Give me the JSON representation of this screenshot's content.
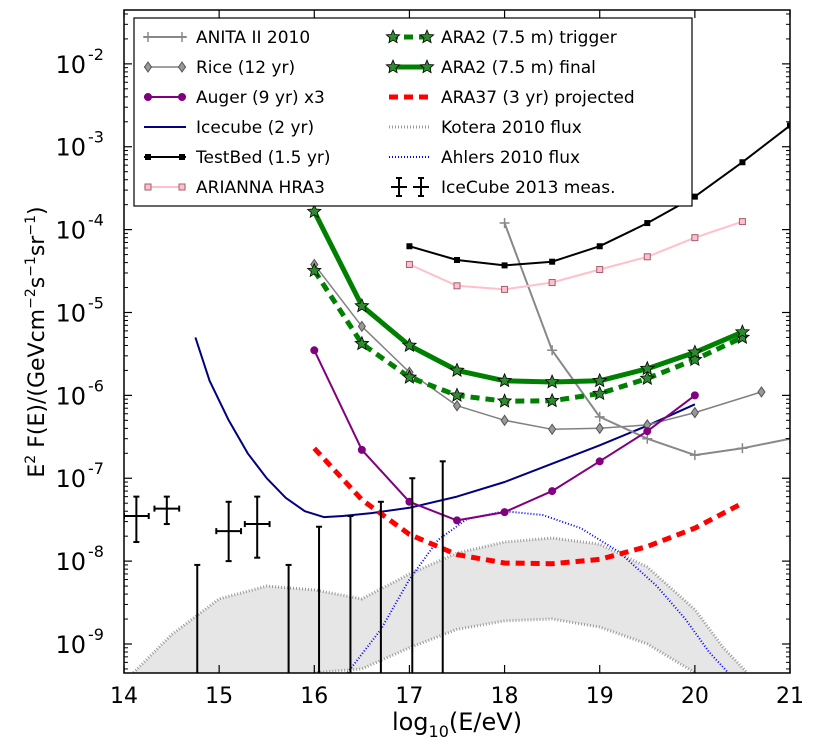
{
  "chart_data": {
    "type": "line",
    "title": "",
    "xlabel": "log10(E/eV)",
    "ylabel": "E² F(E)/(GeV cm⁻² s⁻¹ sr⁻¹)",
    "xlim": [
      14,
      21
    ],
    "ylim_log10": [
      -9.35,
      -1.35
    ],
    "x_ticks": [
      {
        "value": 14,
        "label": "14"
      },
      {
        "value": 15,
        "label": "15"
      },
      {
        "value": 16,
        "label": "16"
      },
      {
        "value": 17,
        "label": "17"
      },
      {
        "value": 18,
        "label": "18"
      },
      {
        "value": 19,
        "label": "19"
      },
      {
        "value": 20,
        "label": "20"
      },
      {
        "value": 21,
        "label": "21"
      }
    ],
    "y_ticks": [
      {
        "exp": -9,
        "label": "10",
        "sup": "-9"
      },
      {
        "exp": -8,
        "label": "10",
        "sup": "-8"
      },
      {
        "exp": -7,
        "label": "10",
        "sup": "-7"
      },
      {
        "exp": -6,
        "label": "10",
        "sup": "-6"
      },
      {
        "exp": -5,
        "label": "10",
        "sup": "-5"
      },
      {
        "exp": -4,
        "label": "10",
        "sup": "-4"
      },
      {
        "exp": -3,
        "label": "10",
        "sup": "-3"
      },
      {
        "exp": -2,
        "label": "10",
        "sup": "-2"
      }
    ],
    "grid": false,
    "legend_position": "top",
    "series": [
      {
        "name": "ANITA II 2010",
        "color": "#888888",
        "width": 2,
        "dash": "",
        "marker": "plus",
        "x": [
          18.0,
          18.5,
          19.0,
          19.5,
          20.0,
          20.5,
          21.0
        ],
        "y": [
          0.00012,
          3.5e-06,
          5.5e-07,
          3e-07,
          1.9e-07,
          2.3e-07,
          3e-07
        ]
      },
      {
        "name": "Rice (12 yr)",
        "color": "#808080",
        "width": 1.5,
        "dash": "",
        "marker": "diamond",
        "x": [
          16.0,
          16.5,
          17.0,
          17.5,
          18.0,
          18.5,
          19.0,
          19.5,
          20.0,
          20.7
        ],
        "y": [
          3.8e-05,
          6.8e-06,
          1.9e-06,
          7.5e-07,
          5e-07,
          3.9e-07,
          4e-07,
          4.4e-07,
          6.2e-07,
          1.1e-06
        ]
      },
      {
        "name": "Auger (9 yr) x3",
        "color": "#800080",
        "width": 2,
        "dash": "",
        "marker": "circle",
        "x": [
          16.0,
          16.5,
          17.0,
          17.5,
          18.0,
          18.5,
          19.0,
          19.5,
          20.0
        ],
        "y": [
          3.5e-06,
          2.2e-07,
          5.2e-08,
          3.1e-08,
          3.9e-08,
          7e-08,
          1.6e-07,
          3.7e-07,
          1e-06
        ]
      },
      {
        "name": "Icecube (2 yr)",
        "color": "#000080",
        "width": 2,
        "dash": "",
        "marker": "none",
        "x": [
          14.75,
          14.9,
          15.1,
          15.3,
          15.5,
          15.7,
          15.9,
          16.1,
          16.3,
          16.6,
          17.0,
          17.5,
          18.0,
          18.5,
          19.0,
          19.5,
          20.0
        ],
        "y": [
          5e-06,
          1.5e-06,
          5e-07,
          2e-07,
          1e-07,
          5.8e-08,
          4e-08,
          3.4e-08,
          3.5e-08,
          3.8e-08,
          4.4e-08,
          6e-08,
          9e-08,
          1.5e-07,
          2.5e-07,
          4.3e-07,
          7.8e-07
        ]
      },
      {
        "name": "TestBed (1.5 yr)",
        "color": "#000000",
        "width": 2,
        "dash": "",
        "marker": "square",
        "x": [
          17.0,
          17.5,
          18.0,
          18.5,
          19.0,
          19.5,
          20.0,
          20.5,
          21.0
        ],
        "y": [
          6.3e-05,
          4.3e-05,
          3.7e-05,
          4.1e-05,
          6.3e-05,
          0.00012,
          0.00025,
          0.00065,
          0.0018
        ]
      },
      {
        "name": "ARIANNA HRA3",
        "color": "#ffc0cb",
        "width": 2,
        "dash": "",
        "marker": "square-open",
        "x": [
          17.0,
          17.5,
          18.0,
          18.5,
          19.0,
          19.5,
          20.0,
          20.5
        ],
        "y": [
          3.8e-05,
          2.1e-05,
          1.9e-05,
          2.3e-05,
          3.3e-05,
          4.7e-05,
          8e-05,
          0.000125
        ]
      },
      {
        "name": "ARA2 (7.5 m) trigger",
        "color": "#008000",
        "width": 5,
        "dash": "9,6",
        "marker": "star",
        "x": [
          16.0,
          16.5,
          17.0,
          17.5,
          18.0,
          18.5,
          19.0,
          19.5,
          20.0,
          20.5
        ],
        "y": [
          3.2e-05,
          4.2e-06,
          1.65e-06,
          1e-06,
          8.5e-07,
          8.6e-07,
          1.05e-06,
          1.6e-06,
          2.7e-06,
          5e-06
        ]
      },
      {
        "name": "ARA2 (7.5 m) final",
        "color": "#008000",
        "width": 5,
        "dash": "",
        "marker": "star",
        "x": [
          16.0,
          16.5,
          17.0,
          17.5,
          18.0,
          18.5,
          19.0,
          19.5,
          20.0,
          20.5
        ],
        "y": [
          0.000165,
          1.2e-05,
          4e-06,
          2e-06,
          1.5e-06,
          1.45e-06,
          1.5e-06,
          2.1e-06,
          3.3e-06,
          5.8e-06
        ]
      },
      {
        "name": "ARA37 (3 yr) projected",
        "color": "#ff0000",
        "width": 5,
        "dash": "9,6",
        "marker": "none",
        "x": [
          16.0,
          16.5,
          17.0,
          17.5,
          18.0,
          18.5,
          19.0,
          19.5,
          20.0,
          20.5
        ],
        "y": [
          2.3e-07,
          5.5e-08,
          2.1e-08,
          1.2e-08,
          9.5e-09,
          9.3e-09,
          1.05e-08,
          1.5e-08,
          2.5e-08,
          5e-08
        ]
      },
      {
        "name": "Kotera 2010 flux",
        "color": "#999999",
        "width": 3,
        "dash": "1,2",
        "marker": "band",
        "x": [
          14.1,
          14.5,
          15.0,
          15.5,
          16.0,
          16.5,
          17.0,
          17.5,
          18.0,
          18.5,
          19.0,
          19.5,
          20.0,
          20.3,
          20.55
        ],
        "y_upper": [
          4.5e-10,
          1.3e-09,
          3.5e-09,
          5e-09,
          4.5e-09,
          3.5e-09,
          7e-09,
          1.25e-08,
          1.7e-08,
          1.9e-08,
          1.6e-08,
          8.5e-09,
          2.6e-09,
          9e-10,
          4.5e-10
        ],
        "y_lower": [
          null,
          null,
          null,
          null,
          4.5e-10,
          5e-10,
          9e-10,
          1.5e-09,
          1.9e-09,
          2e-09,
          1.6e-09,
          1e-09,
          4.5e-10,
          null,
          null
        ],
        "lower_x": [
          16.0,
          16.5,
          17.0,
          17.5,
          18.0,
          18.5,
          19.0,
          19.5,
          20.0
        ],
        "lower_y": [
          4.5e-10,
          5e-10,
          9e-10,
          1.5e-09,
          1.9e-09,
          2e-09,
          1.6e-09,
          1e-09,
          4.5e-10
        ]
      },
      {
        "name": "Ahlers 2010 flux",
        "color": "#0000ff",
        "width": 2,
        "dash": "1,2",
        "marker": "none",
        "x": [
          16.35,
          16.7,
          17.0,
          17.3,
          17.6,
          18.0,
          18.4,
          18.8,
          19.2,
          19.6,
          19.9,
          20.15,
          20.35
        ],
        "y": [
          4.5e-10,
          1.5e-09,
          6e-09,
          1.8e-08,
          3.2e-08,
          4e-08,
          3.6e-08,
          2.5e-08,
          1.3e-08,
          5e-09,
          2e-09,
          8e-10,
          4.5e-10
        ]
      },
      {
        "name": "IceCube 2013 meas.",
        "color": "#000000",
        "width": 2,
        "dash": "",
        "marker": "errorbar",
        "points": [
          {
            "x": 14.13,
            "xerr": 0.13,
            "y": 3.5e-08,
            "ylo": 1.7e-08,
            "yhi": 6e-08,
            "limit": false
          },
          {
            "x": 14.45,
            "xerr": 0.13,
            "y": 4.3e-08,
            "ylo": 2.8e-08,
            "yhi": 6e-08,
            "limit": false
          },
          {
            "x": 15.1,
            "xerr": 0.13,
            "y": 2.3e-08,
            "ylo": 1e-08,
            "yhi": 5.2e-08,
            "limit": false
          },
          {
            "x": 15.4,
            "xerr": 0.13,
            "y": 2.8e-08,
            "ylo": 1.1e-08,
            "yhi": 6e-08,
            "limit": false
          },
          {
            "x": 14.77,
            "xerr": 0,
            "y": null,
            "ylo": 4.5e-10,
            "yhi": 9e-09,
            "limit": true
          },
          {
            "x": 15.73,
            "xerr": 0,
            "y": null,
            "ylo": 4.5e-10,
            "yhi": 9e-09,
            "limit": true
          },
          {
            "x": 16.05,
            "xerr": 0,
            "y": null,
            "ylo": 4.5e-10,
            "yhi": 2.6e-08,
            "limit": true
          },
          {
            "x": 16.38,
            "xerr": 0,
            "y": null,
            "ylo": 4.5e-10,
            "yhi": 3.5e-08,
            "limit": true
          },
          {
            "x": 16.7,
            "xerr": 0,
            "y": null,
            "ylo": 4.5e-10,
            "yhi": 5.2e-08,
            "limit": true
          },
          {
            "x": 17.03,
            "xerr": 0,
            "y": null,
            "ylo": 4.5e-10,
            "yhi": 1e-07,
            "limit": true
          },
          {
            "x": 17.35,
            "xerr": 0,
            "y": null,
            "ylo": 4.5e-10,
            "yhi": 1.6e-07,
            "limit": true
          }
        ]
      }
    ],
    "legend": {
      "left_column": [
        "ANITA II 2010",
        "Rice (12 yr)",
        "Auger (9 yr) x3",
        "Icecube (2 yr)",
        "TestBed (1.5 yr)",
        "ARIANNA HRA3"
      ],
      "right_column": [
        "ARA2 (7.5 m) trigger",
        "ARA2 (7.5 m) final",
        "ARA37 (3 yr) projected",
        "Kotera 2010 flux",
        "Ahlers 2010 flux",
        "IceCube 2013 meas."
      ]
    }
  }
}
